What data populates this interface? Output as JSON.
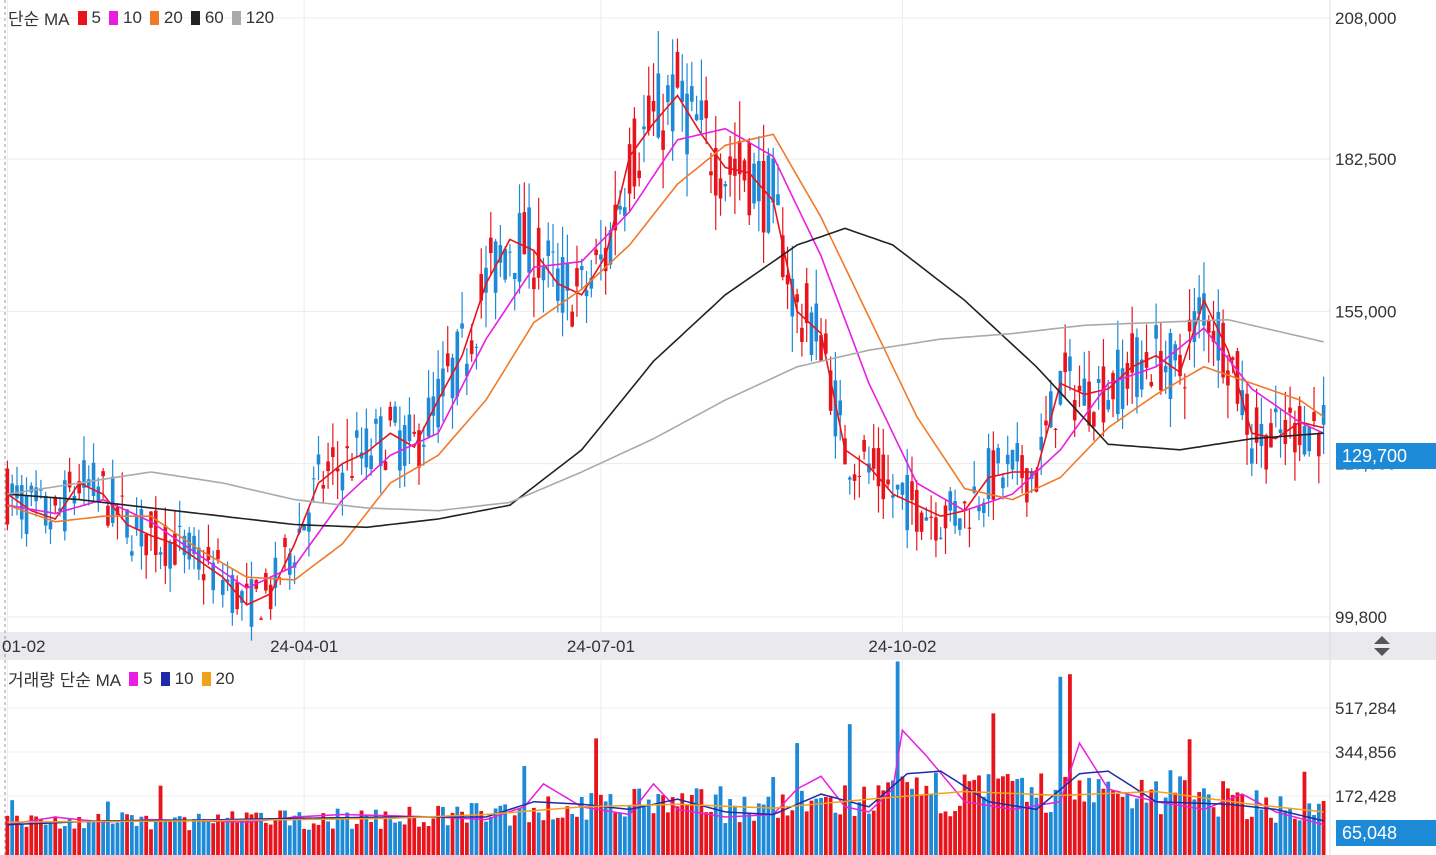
{
  "price_legend": {
    "label": "단순 MA",
    "items": [
      {
        "label": "5",
        "color": "#e8141c"
      },
      {
        "label": "10",
        "color": "#e91ee0"
      },
      {
        "label": "20",
        "color": "#f07a2a"
      },
      {
        "label": "60",
        "color": "#222222"
      },
      {
        "label": "120",
        "color": "#aaaaaa"
      }
    ]
  },
  "volume_legend": {
    "label": "거래량 단순 MA",
    "items": [
      {
        "label": "5",
        "color": "#e91ee0"
      },
      {
        "label": "10",
        "color": "#1f2aa8"
      },
      {
        "label": "20",
        "color": "#f2a21a"
      }
    ]
  },
  "price_badge": {
    "value": "129,700",
    "color": "#1d8ad8"
  },
  "volume_badge": {
    "value": "65,048",
    "color": "#1d8ad8"
  },
  "colors": {
    "up": "#e8141c",
    "down": "#1d8ad8",
    "grid": "#ececec",
    "axis_bg": "#e9e9ee",
    "axis_text": "#333333"
  },
  "chart_data": [
    {
      "type": "candlestick",
      "panel": "price",
      "x_tick_labels": [
        "01-02",
        "24-04-01",
        "24-07-01",
        "24-10-02"
      ],
      "y_tick_labels": [
        "208,000",
        "182,500",
        "155,000",
        "127,500",
        "99,800"
      ],
      "ylim": [
        99800,
        208000
      ],
      "last_value": 129700,
      "moving_averages": [
        {
          "name": "5",
          "points": [
            [
              0,
              122000
            ],
            [
              5,
              119000
            ],
            [
              10,
              117500
            ],
            [
              15,
              124000
            ],
            [
              20,
              122000
            ],
            [
              25,
              116500
            ],
            [
              30,
              114500
            ],
            [
              35,
              113000
            ],
            [
              40,
              110000
            ],
            [
              45,
              107000
            ],
            [
              50,
              102000
            ],
            [
              55,
              104000
            ],
            [
              60,
              113000
            ],
            [
              65,
              124000
            ],
            [
              70,
              127500
            ],
            [
              75,
              129500
            ],
            [
              80,
              133000
            ],
            [
              85,
              130500
            ],
            [
              90,
              139000
            ],
            [
              95,
              147000
            ],
            [
              100,
              160000
            ],
            [
              105,
              168000
            ],
            [
              110,
              166000
            ],
            [
              115,
              160000
            ],
            [
              120,
              158000
            ],
            [
              125,
              165000
            ],
            [
              130,
              183000
            ],
            [
              135,
              189000
            ],
            [
              140,
              194000
            ],
            [
              145,
              187000
            ],
            [
              150,
              181000
            ],
            [
              155,
              180000
            ],
            [
              160,
              175000
            ],
            [
              165,
              155000
            ],
            [
              170,
              151000
            ],
            [
              175,
              130000
            ],
            [
              180,
              127000
            ],
            [
              185,
              122000
            ],
            [
              190,
              120000
            ],
            [
              195,
              118000
            ],
            [
              200,
              119000
            ],
            [
              205,
              125000
            ],
            [
              210,
              126000
            ],
            [
              215,
              126000
            ],
            [
              220,
              142000
            ],
            [
              225,
              140000
            ],
            [
              230,
              141000
            ],
            [
              235,
              145000
            ],
            [
              240,
              147000
            ],
            [
              245,
              144000
            ],
            [
              250,
              157000
            ],
            [
              255,
              148000
            ],
            [
              260,
              133000
            ],
            [
              265,
              132000
            ],
            [
              270,
              135000
            ],
            [
              275,
              134000
            ]
          ]
        },
        {
          "name": "10",
          "points": [
            [
              0,
              120000
            ],
            [
              10,
              118500
            ],
            [
              20,
              121000
            ],
            [
              30,
              117000
            ],
            [
              40,
              111000
            ],
            [
              50,
              105000
            ],
            [
              60,
              109000
            ],
            [
              70,
              121000
            ],
            [
              80,
              129000
            ],
            [
              90,
              133000
            ],
            [
              100,
              150000
            ],
            [
              110,
              163000
            ],
            [
              120,
              164000
            ],
            [
              130,
              173000
            ],
            [
              140,
              186000
            ],
            [
              150,
              188000
            ],
            [
              160,
              183000
            ],
            [
              170,
              165000
            ],
            [
              180,
              142000
            ],
            [
              190,
              124000
            ],
            [
              200,
              119000
            ],
            [
              210,
              122000
            ],
            [
              220,
              130000
            ],
            [
              230,
              142000
            ],
            [
              240,
              145000
            ],
            [
              250,
              152000
            ],
            [
              260,
              141000
            ],
            [
              270,
              135000
            ],
            [
              275,
              133000
            ]
          ]
        },
        {
          "name": "20",
          "points": [
            [
              0,
              120000
            ],
            [
              10,
              117000
            ],
            [
              20,
              118000
            ],
            [
              30,
              118000
            ],
            [
              40,
              112000
            ],
            [
              50,
              107000
            ],
            [
              60,
              106500
            ],
            [
              70,
              113000
            ],
            [
              80,
              124000
            ],
            [
              90,
              129000
            ],
            [
              100,
              139000
            ],
            [
              110,
              153000
            ],
            [
              120,
              159000
            ],
            [
              130,
              167000
            ],
            [
              140,
              178000
            ],
            [
              150,
              185000
            ],
            [
              160,
              187000
            ],
            [
              170,
              172000
            ],
            [
              180,
              154000
            ],
            [
              190,
              136000
            ],
            [
              200,
              123000
            ],
            [
              210,
              121000
            ],
            [
              220,
              125000
            ],
            [
              230,
              134000
            ],
            [
              240,
              140000
            ],
            [
              250,
              145000
            ],
            [
              260,
              142000
            ],
            [
              270,
              139000
            ],
            [
              275,
              136000
            ]
          ]
        },
        {
          "name": "60",
          "points": [
            [
              0,
              122000
            ],
            [
              15,
              121000
            ],
            [
              30,
              119500
            ],
            [
              45,
              118000
            ],
            [
              60,
              116500
            ],
            [
              75,
              116000
            ],
            [
              90,
              117500
            ],
            [
              105,
              120000
            ],
            [
              120,
              130000
            ],
            [
              135,
              146000
            ],
            [
              150,
              158000
            ],
            [
              165,
              167000
            ],
            [
              175,
              170000
            ],
            [
              185,
              167000
            ],
            [
              200,
              157000
            ],
            [
              215,
              145000
            ],
            [
              230,
              131000
            ],
            [
              245,
              130000
            ],
            [
              260,
              132000
            ],
            [
              275,
              133000
            ]
          ]
        },
        {
          "name": "120",
          "points": [
            [
              0,
              122000
            ],
            [
              30,
              126000
            ],
            [
              45,
              124000
            ],
            [
              60,
              121000
            ],
            [
              75,
              119500
            ],
            [
              90,
              119000
            ],
            [
              105,
              120500
            ],
            [
              120,
              126000
            ],
            [
              135,
              132000
            ],
            [
              150,
              139000
            ],
            [
              165,
              145000
            ],
            [
              180,
              148000
            ],
            [
              195,
              150000
            ],
            [
              210,
              151000
            ],
            [
              225,
              152500
            ],
            [
              240,
              153000
            ],
            [
              255,
              153500
            ],
            [
              265,
              151500
            ],
            [
              275,
              149500
            ]
          ]
        }
      ]
    },
    {
      "type": "bar",
      "panel": "volume",
      "y_tick_labels": [
        "517,284",
        "344,856",
        "172,428"
      ],
      "ylim": [
        0,
        690000
      ],
      "last_value": 65048,
      "spikes": [
        {
          "x": 165,
          "value": 380000
        },
        {
          "x": 186,
          "value": 700000
        },
        {
          "x": 220,
          "value": 640000
        },
        {
          "x": 222,
          "value": 650000
        },
        {
          "x": 108,
          "value": 290000
        }
      ],
      "moving_averages": [
        {
          "name": "5",
          "points": [
            [
              0,
              60000
            ],
            [
              10,
              90000
            ],
            [
              20,
              70000
            ],
            [
              30,
              80000
            ],
            [
              40,
              75000
            ],
            [
              50,
              70000
            ],
            [
              60,
              90000
            ],
            [
              70,
              100000
            ],
            [
              80,
              95000
            ],
            [
              90,
              90000
            ],
            [
              100,
              80000
            ],
            [
              108,
              130000
            ],
            [
              112,
              220000
            ],
            [
              120,
              130000
            ],
            [
              130,
              100000
            ],
            [
              135,
              220000
            ],
            [
              140,
              120000
            ],
            [
              150,
              90000
            ],
            [
              160,
              100000
            ],
            [
              165,
              200000
            ],
            [
              170,
              250000
            ],
            [
              175,
              130000
            ],
            [
              180,
              110000
            ],
            [
              185,
              200000
            ],
            [
              187,
              430000
            ],
            [
              192,
              330000
            ],
            [
              200,
              150000
            ],
            [
              210,
              120000
            ],
            [
              220,
              150000
            ],
            [
              224,
              380000
            ],
            [
              230,
              200000
            ],
            [
              240,
              150000
            ],
            [
              250,
              120000
            ],
            [
              258,
              180000
            ],
            [
              265,
              110000
            ],
            [
              275,
              60000
            ]
          ]
        },
        {
          "name": "10",
          "points": [
            [
              0,
              60000
            ],
            [
              20,
              75000
            ],
            [
              40,
              78000
            ],
            [
              60,
              85000
            ],
            [
              80,
              90000
            ],
            [
              100,
              90000
            ],
            [
              110,
              150000
            ],
            [
              120,
              140000
            ],
            [
              130,
              120000
            ],
            [
              140,
              160000
            ],
            [
              150,
              110000
            ],
            [
              160,
              100000
            ],
            [
              170,
              180000
            ],
            [
              180,
              130000
            ],
            [
              188,
              260000
            ],
            [
              195,
              270000
            ],
            [
              205,
              150000
            ],
            [
              215,
              120000
            ],
            [
              224,
              260000
            ],
            [
              230,
              270000
            ],
            [
              240,
              150000
            ],
            [
              255,
              140000
            ],
            [
              265,
              120000
            ],
            [
              275,
              75000
            ]
          ]
        },
        {
          "name": "20",
          "points": [
            [
              0,
              70000
            ],
            [
              40,
              75000
            ],
            [
              80,
              85000
            ],
            [
              100,
              100000
            ],
            [
              120,
              130000
            ],
            [
              140,
              140000
            ],
            [
              160,
              125000
            ],
            [
              180,
              160000
            ],
            [
              200,
              190000
            ],
            [
              220,
              175000
            ],
            [
              240,
              190000
            ],
            [
              260,
              140000
            ],
            [
              275,
              110000
            ]
          ]
        }
      ]
    }
  ]
}
